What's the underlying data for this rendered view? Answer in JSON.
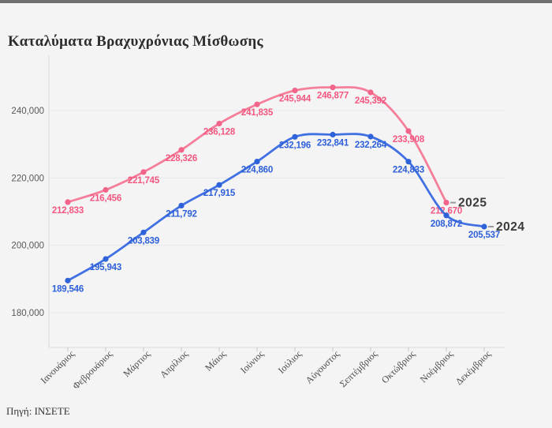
{
  "page": {
    "title": "Καταλύματα Βραχυχρόνιας Μίσθωσης",
    "source": "Πηγή: ΙΝΣΕΤΕ",
    "background_color": "#f4f4f5",
    "topbar_color": "#6f6f6f"
  },
  "chart_data": {
    "type": "line",
    "title": "Καταλύματα Βραχυχρόνιας Μίσθωσης",
    "categories": [
      "Ιανουάριος",
      "Φεβρουάριος",
      "Μάρτιος",
      "Απρίλιος",
      "Μάιος",
      "Ιούνιος",
      "Ιούλιος",
      "Αύγουστος",
      "Σεπτέμβριος",
      "Οκτώβριος",
      "Νοέμβριος",
      "Δεκέμβριος"
    ],
    "series": [
      {
        "name": "2025",
        "line_color": "#f57f9b",
        "marker_color": "#f2648a",
        "label_color": "#f3577f",
        "values": [
          212833,
          216456,
          221745,
          228326,
          236128,
          241835,
          245944,
          246877,
          245392,
          233908,
          212670
        ]
      },
      {
        "name": "2024",
        "line_color": "#4170e3",
        "marker_color": "#2e62d9",
        "label_color": "#2d5fd8",
        "values": [
          189546,
          195943,
          203839,
          211792,
          217915,
          224860,
          232196,
          232841,
          232264,
          224833,
          208872,
          205537
        ]
      }
    ],
    "yticks": [
      180000,
      200000,
      220000,
      240000
    ],
    "ylim": [
      170000,
      256000
    ],
    "grid": "horizontal",
    "legend_position": "line-end",
    "xlabel": "",
    "ylabel": "",
    "annotation_dash_color": "#9a9a9a"
  }
}
